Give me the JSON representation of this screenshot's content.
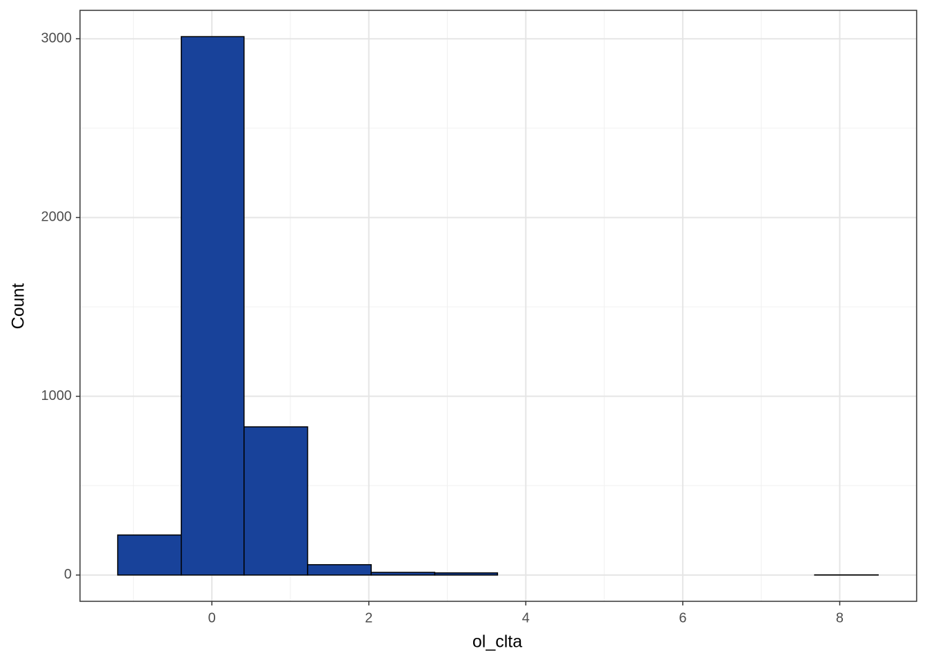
{
  "chart_data": {
    "type": "histogram",
    "x_label": "ol_clta",
    "y_label": "Count",
    "bins": [
      -1.2,
      -0.39,
      0.41,
      1.22,
      2.03,
      2.84,
      3.64,
      4.45,
      5.26,
      6.07,
      6.88,
      7.68,
      8.49
    ],
    "counts": [
      224,
      3012,
      829,
      58,
      15,
      12,
      0,
      0,
      0,
      0,
      0,
      1
    ],
    "color": "#18429a",
    "edge_color": "#000000",
    "xlim": [
      -1.68,
      8.98
    ],
    "ylim": [
      -147,
      3159
    ],
    "xticks": [
      0,
      2,
      4,
      6,
      8
    ],
    "yticks": [
      0,
      1000,
      2000,
      3000
    ],
    "x_minor_ticks": [
      -1,
      1,
      3,
      5,
      7
    ],
    "y_minor_ticks": [
      500,
      1500,
      2500
    ],
    "grid": true
  }
}
